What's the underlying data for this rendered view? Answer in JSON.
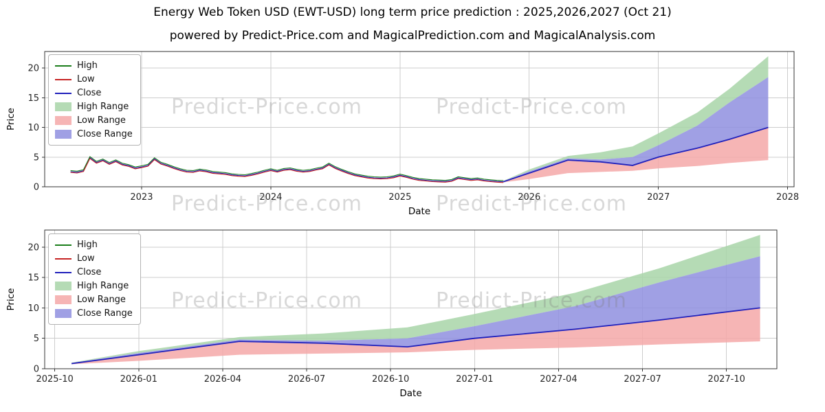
{
  "page": {
    "title": "Energy Web Token USD (EWT-USD) long term price prediction : 2025,2026,2027 (Oct 21)",
    "subtitle": "powered by Predict-Price.com and MagicalPrediction.com and MagicalAnalysis.com",
    "watermark": "Predict-Price.com"
  },
  "chart_data": {
    "type": "line",
    "colors": {
      "high": "#1a7d1a",
      "low": "#c62222",
      "close": "#2020bb",
      "high_range": "#a8d5a8",
      "low_range": "#f5a8a8",
      "close_range": "#8f8fdf",
      "grid": "#cccccc",
      "spine": "#333333",
      "tick_text": "#262626"
    },
    "legend": [
      {
        "label": "High",
        "type": "line",
        "color_key": "high"
      },
      {
        "label": "Low",
        "type": "line",
        "color_key": "low"
      },
      {
        "label": "Close",
        "type": "line",
        "color_key": "close"
      },
      {
        "label": "High Range",
        "type": "patch",
        "color_key": "high_range"
      },
      {
        "label": "Low Range",
        "type": "patch",
        "color_key": "low_range"
      },
      {
        "label": "Close Range",
        "type": "patch",
        "color_key": "close_range"
      }
    ],
    "subplots": [
      {
        "name": "subplot-full-history",
        "xlabel": "Date",
        "ylabel": "Price",
        "xlim": [
          2022.25,
          2028.05
        ],
        "ylim": [
          0,
          22.8
        ],
        "x_tick_values": [
          2023,
          2024,
          2025,
          2026,
          2027,
          2028
        ],
        "x_tick_labels": [
          "2023",
          "2024",
          "2025",
          "2026",
          "2027",
          "2028"
        ],
        "y_tick_values": [
          0,
          5,
          10,
          15,
          20
        ],
        "y_tick_labels": [
          "0",
          "5",
          "10",
          "15",
          "20"
        ],
        "grid": true,
        "series_shown": [
          "historical",
          "prediction"
        ]
      },
      {
        "name": "subplot-forecast-zoom",
        "xlabel": "Date",
        "ylabel": "Price",
        "xlim": [
          2025.72,
          2027.9
        ],
        "ylim": [
          0,
          22.8
        ],
        "x_tick_values": [
          2025.75,
          2026.0,
          2026.25,
          2026.5,
          2026.75,
          2027.0,
          2027.25,
          2027.5,
          2027.75
        ],
        "x_tick_labels": [
          "2025-10",
          "2026-01",
          "2026-04",
          "2026-07",
          "2026-10",
          "2027-01",
          "2027-04",
          "2027-07",
          "2027-10"
        ],
        "y_tick_values": [
          0,
          5,
          10,
          15,
          20
        ],
        "y_tick_labels": [
          "0",
          "5",
          "10",
          "15",
          "20"
        ],
        "grid": true,
        "series_shown": [
          "prediction"
        ]
      }
    ],
    "historical": {
      "x_start": 2022.45,
      "x_step": 0.05,
      "close": [
        2.55,
        2.45,
        2.7,
        4.9,
        4.1,
        4.5,
        3.9,
        4.35,
        3.8,
        3.55,
        3.15,
        3.35,
        3.6,
        4.7,
        3.95,
        3.6,
        3.2,
        2.85,
        2.6,
        2.55,
        2.8,
        2.65,
        2.4,
        2.3,
        2.2,
        2.0,
        1.9,
        1.85,
        2.05,
        2.3,
        2.6,
        2.85,
        2.6,
        2.9,
        3.0,
        2.75,
        2.6,
        2.7,
        2.95,
        3.15,
        3.8,
        3.2,
        2.75,
        2.35,
        2.0,
        1.8,
        1.6,
        1.5,
        1.45,
        1.5,
        1.65,
        1.95,
        1.7,
        1.4,
        1.2,
        1.1,
        1.0,
        0.95,
        0.9,
        1.05,
        1.5,
        1.35,
        1.2,
        1.3,
        1.1,
        1.0,
        0.9,
        0.85
      ],
      "high_offset": 0.18,
      "low_offset": 0.13
    },
    "prediction": {
      "x": [
        2025.8,
        2026.0,
        2026.3,
        2026.55,
        2026.8,
        2027.0,
        2027.3,
        2027.55,
        2027.85
      ],
      "close": [
        0.85,
        2.3,
        4.5,
        4.2,
        3.6,
        5.0,
        6.5,
        8.0,
        10.0
      ],
      "high_range_upper": [
        1.0,
        2.9,
        5.2,
        5.8,
        6.8,
        9.0,
        12.5,
        16.5,
        22.0
      ],
      "close_range_upper": [
        0.95,
        2.6,
        4.8,
        4.6,
        5.0,
        7.0,
        10.3,
        14.2,
        18.5
      ],
      "low_range_upper": [
        0.88,
        2.35,
        4.4,
        4.1,
        3.5,
        4.9,
        6.4,
        7.9,
        10.0
      ],
      "low_range_lower": [
        0.75,
        1.3,
        2.3,
        2.5,
        2.7,
        3.1,
        3.5,
        4.0,
        4.5
      ]
    }
  }
}
